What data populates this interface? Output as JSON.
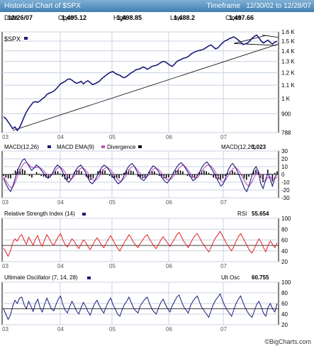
{
  "header": {
    "title": "Historical Chart of $SPX",
    "timeframe_label": "Timeframe",
    "timeframe_value": "12/30/02 to 12/28/07"
  },
  "info": {
    "date_label": "Date",
    "date_value": "12/26/07",
    "open_label": "Open",
    "open_value": "1,495.12",
    "high_label": "High",
    "high_value": "1,498.85",
    "low_label": "Low",
    "low_value": "1,488.2",
    "close_label": "Close",
    "close_value": "1,497.66"
  },
  "colors": {
    "price": "#1a1a7a",
    "macd": "#1a1a7a",
    "signal": "#c050c0",
    "divergence": "#000000",
    "rsi": "#e02020",
    "ult": "#1a1a7a",
    "grid": "#c8d2e0",
    "frame": "#000000",
    "trend": "#000000"
  },
  "footer": "©BigCharts.com",
  "chart_data": [
    {
      "type": "line",
      "panel": "price",
      "legend": "$SPX",
      "x_ticks": [
        "03",
        "04",
        "05",
        "06",
        "07"
      ],
      "yticks": [
        "1.6 K",
        "1.5 K",
        "1.4 K",
        "1.3 K",
        "1.2 K",
        "1.1 K",
        "1 K",
        "900",
        "788"
      ],
      "ylim": [
        788,
        1600
      ],
      "scale": "log",
      "series": [
        {
          "values": [
            880,
            870,
            850,
            830,
            810,
            820,
            800,
            815,
            845,
            880,
            910,
            935,
            955,
            975,
            980,
            975,
            985,
            1000,
            1010,
            1030,
            1040,
            1045,
            1055,
            1070,
            1090,
            1110,
            1120,
            1130,
            1145,
            1150,
            1140,
            1125,
            1115,
            1120,
            1130,
            1110,
            1125,
            1135,
            1120,
            1105,
            1110,
            1120,
            1130,
            1150,
            1165,
            1180,
            1195,
            1205,
            1210,
            1195,
            1185,
            1180,
            1165,
            1160,
            1170,
            1185,
            1200,
            1210,
            1225,
            1230,
            1235,
            1250,
            1245,
            1230,
            1240,
            1255,
            1260,
            1265,
            1275,
            1290,
            1300,
            1295,
            1280,
            1265,
            1255,
            1275,
            1300,
            1310,
            1320,
            1330,
            1335,
            1345,
            1365,
            1380,
            1390,
            1400,
            1405,
            1410,
            1420,
            1435,
            1450,
            1460,
            1440,
            1420,
            1430,
            1455,
            1480,
            1500,
            1510,
            1525,
            1535,
            1545,
            1530,
            1510,
            1490,
            1465,
            1470,
            1480,
            1500,
            1530,
            1550,
            1565,
            1535,
            1500,
            1480,
            1495,
            1510,
            1485,
            1470,
            1490,
            1497
          ]
        }
      ]
    },
    {
      "type": "line",
      "panel": "macd",
      "legend": [
        "MACD(12,26)",
        "MACD EMA(9)",
        "Divergence"
      ],
      "readout_label": "MACD(12,26)",
      "readout_value": "1.023",
      "yticks": [
        "30",
        "20",
        "10",
        "0",
        "-10",
        "-20",
        "-30"
      ],
      "ylim": [
        -30,
        30
      ],
      "series": [
        {
          "name": "MACD(12,26)",
          "values": [
            -5,
            -12,
            -18,
            -22,
            -15,
            -5,
            5,
            12,
            18,
            20,
            15,
            10,
            5,
            8,
            12,
            10,
            6,
            2,
            -2,
            -5,
            -3,
            2,
            8,
            12,
            10,
            5,
            -2,
            -8,
            -10,
            -6,
            0,
            6,
            10,
            12,
            8,
            3,
            -4,
            -10,
            -12,
            -8,
            -2,
            4,
            9,
            12,
            10,
            6,
            1,
            -4,
            -8,
            -12,
            -10,
            -5,
            2,
            8,
            12,
            14,
            10,
            4,
            -2,
            -6,
            -8,
            -4,
            2,
            7,
            11,
            9,
            5,
            0,
            -5,
            -9,
            -11,
            -7,
            -2,
            4,
            9,
            13,
            15,
            12,
            7,
            2,
            -3,
            -8,
            -6,
            -1,
            4,
            10,
            14,
            16,
            12,
            7,
            2,
            -4,
            -10,
            -15,
            -12,
            -4,
            5,
            11,
            14,
            10,
            4,
            -3,
            -10,
            -18,
            -22,
            -14,
            -4,
            6,
            10,
            3,
            -12,
            -18,
            -8,
            2,
            -6,
            -15,
            -4,
            1
          ]
        },
        {
          "name": "MACD EMA(9)",
          "values": [
            -3,
            -8,
            -13,
            -17,
            -16,
            -10,
            -2,
            5,
            11,
            15,
            15,
            12,
            9,
            8,
            9,
            9,
            8,
            5,
            2,
            -1,
            -2,
            0,
            4,
            8,
            9,
            8,
            4,
            -1,
            -5,
            -6,
            -3,
            1,
            5,
            8,
            8,
            6,
            2,
            -3,
            -7,
            -8,
            -6,
            -2,
            3,
            7,
            9,
            8,
            5,
            1,
            -3,
            -7,
            -9,
            -7,
            -3,
            2,
            7,
            10,
            10,
            7,
            3,
            -1,
            -4,
            -4,
            -1,
            3,
            7,
            8,
            7,
            4,
            0,
            -4,
            -7,
            -7,
            -5,
            -1,
            3,
            8,
            11,
            12,
            9,
            5,
            1,
            -3,
            -5,
            -4,
            0,
            5,
            9,
            12,
            12,
            10,
            6,
            1,
            -4,
            -8,
            -10,
            -7,
            -2,
            3,
            7,
            9,
            7,
            3,
            -2,
            -8,
            -13,
            -15,
            -11,
            -5,
            1,
            4,
            -2,
            -8,
            -8,
            -4,
            -3,
            -7,
            -6,
            -3
          ]
        },
        {
          "name": "Divergence",
          "values": [
            -2,
            -4,
            -5,
            -5,
            1,
            5,
            7,
            7,
            7,
            5,
            0,
            -2,
            -4,
            0,
            3,
            1,
            -2,
            -3,
            -4,
            -4,
            -1,
            2,
            4,
            4,
            1,
            -3,
            -6,
            -7,
            -5,
            0,
            3,
            5,
            5,
            4,
            0,
            -3,
            -6,
            -7,
            -5,
            0,
            4,
            6,
            6,
            5,
            1,
            -2,
            -4,
            -5,
            -5,
            -5,
            -1,
            2,
            5,
            6,
            5,
            4,
            0,
            -3,
            -5,
            -5,
            -4,
            0,
            3,
            4,
            4,
            1,
            -2,
            -4,
            -5,
            -5,
            -4,
            0,
            3,
            5,
            6,
            5,
            4,
            0,
            -2,
            -3,
            -4,
            -5,
            -1,
            3,
            5,
            5,
            4,
            2,
            -1,
            -4,
            -5,
            -6,
            -7,
            -5,
            -2,
            2,
            4,
            5,
            3,
            1,
            -1,
            -2,
            -5,
            -7,
            -3,
            1,
            5,
            6,
            5,
            -4,
            -10,
            0,
            6,
            1,
            -9,
            2,
            4
          ]
        }
      ]
    },
    {
      "type": "line",
      "panel": "rsi",
      "legend": "Relative Strength Index (14)",
      "readout_label": "RSI",
      "readout_value": "55.654",
      "yticks": [
        "100",
        "80",
        "60",
        "40",
        "20"
      ],
      "ylim": [
        20,
        100
      ],
      "series": [
        {
          "name": "Relative Strength Index (14)",
          "values": [
            45,
            38,
            30,
            40,
            55,
            62,
            58,
            66,
            70,
            60,
            52,
            65,
            58,
            50,
            62,
            68,
            55,
            48,
            60,
            70,
            63,
            55,
            50,
            58,
            66,
            72,
            60,
            52,
            47,
            55,
            62,
            58,
            50,
            44,
            52,
            60,
            56,
            48,
            42,
            50,
            58,
            64,
            58,
            50,
            46,
            54,
            62,
            68,
            60,
            52,
            45,
            40,
            48,
            56,
            62,
            70,
            64,
            56,
            50,
            46,
            54,
            60,
            66,
            70,
            62,
            55,
            48,
            44,
            52,
            60,
            66,
            60,
            54,
            48,
            55,
            62,
            70,
            74,
            66,
            58,
            52,
            46,
            54,
            62,
            68,
            72,
            64,
            56,
            50,
            44,
            38,
            46,
            56,
            64,
            70,
            76,
            68,
            60,
            52,
            46,
            40,
            48,
            58,
            66,
            72,
            64,
            56,
            48,
            40,
            36,
            44,
            54,
            62,
            56,
            46,
            38,
            50,
            58,
            52,
            46,
            55
          ]
        }
      ]
    },
    {
      "type": "line",
      "panel": "ultimate",
      "legend": "Ultimate Oscillator (7, 14, 28)",
      "readout_label": "Ult Osc",
      "readout_value": "60.755",
      "yticks": [
        "100",
        "80",
        "60",
        "40",
        "20"
      ],
      "ylim": [
        20,
        100
      ],
      "series": [
        {
          "name": "Ultimate Oscillator (7, 14, 28)",
          "values": [
            50,
            40,
            30,
            38,
            55,
            66,
            60,
            70,
            72,
            58,
            50,
            64,
            55,
            45,
            60,
            68,
            52,
            44,
            58,
            70,
            60,
            50,
            46,
            58,
            68,
            74,
            58,
            48,
            42,
            54,
            64,
            56,
            46,
            40,
            52,
            62,
            55,
            45,
            38,
            50,
            60,
            66,
            56,
            48,
            42,
            54,
            64,
            70,
            58,
            50,
            40,
            36,
            48,
            58,
            64,
            72,
            62,
            52,
            46,
            42,
            56,
            62,
            68,
            72,
            60,
            50,
            44,
            40,
            52,
            62,
            68,
            58,
            50,
            44,
            56,
            64,
            72,
            76,
            64,
            54,
            48,
            42,
            56,
            64,
            70,
            74,
            62,
            52,
            46,
            40,
            34,
            46,
            58,
            66,
            72,
            78,
            66,
            56,
            48,
            42,
            36,
            48,
            60,
            68,
            74,
            62,
            52,
            44,
            38,
            34,
            46,
            58,
            64,
            54,
            42,
            36,
            52,
            60,
            50,
            44,
            60
          ]
        }
      ]
    }
  ]
}
